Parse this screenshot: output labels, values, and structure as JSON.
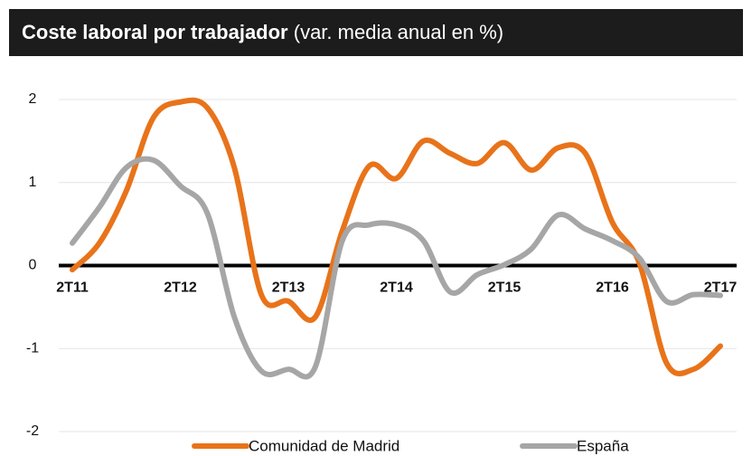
{
  "chart_data": {
    "type": "line",
    "title": "Coste laboral por trabajador",
    "subtitle": "(var. media anual en %)",
    "categories": [
      "2T11",
      null,
      null,
      null,
      "2T12",
      null,
      null,
      null,
      "2T13",
      null,
      null,
      null,
      "2T14",
      null,
      null,
      null,
      "2T15",
      null,
      null,
      null,
      "2T16",
      null,
      null,
      null,
      "2T17"
    ],
    "series": [
      {
        "name": "Comunidad de Madrid",
        "color": "#e8731a",
        "values": [
          -0.05,
          0.27,
          0.9,
          1.78,
          1.97,
          1.9,
          1.18,
          -0.35,
          -0.43,
          -0.62,
          0.42,
          1.2,
          1.05,
          1.5,
          1.35,
          1.23,
          1.48,
          1.15,
          1.42,
          1.35,
          0.52,
          0.03,
          -1.17,
          -1.25,
          -0.97
        ]
      },
      {
        "name": "España",
        "color": "#a6a6a6",
        "values": [
          0.27,
          0.7,
          1.18,
          1.27,
          0.96,
          0.63,
          -0.62,
          -1.27,
          -1.25,
          -1.22,
          0.3,
          0.49,
          0.49,
          0.3,
          -0.32,
          -0.11,
          0.01,
          0.2,
          0.61,
          0.44,
          0.3,
          0.09,
          -0.43,
          -0.35,
          -0.36
        ]
      }
    ],
    "ylim": [
      -2,
      2
    ],
    "yticks": [
      -2,
      -1,
      0,
      1,
      2
    ],
    "grid": true
  }
}
